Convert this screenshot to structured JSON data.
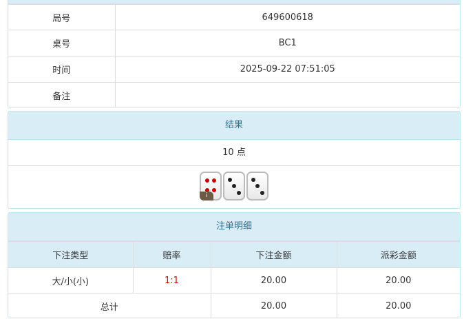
{
  "info": {
    "rows": [
      {
        "label": "局号",
        "value": "649600618"
      },
      {
        "label": "桌号",
        "value": "BC1"
      },
      {
        "label": "时间",
        "value": "2025-09-22 07:51:05"
      },
      {
        "label": "备注",
        "value": ""
      }
    ]
  },
  "result": {
    "title": "结果",
    "points": "10 点",
    "dice": [
      4,
      3,
      3
    ],
    "info_badge": "i"
  },
  "bets": {
    "title": "注单明细",
    "headers": [
      "下注类型",
      "赔率",
      "下注金额",
      "派彩金额"
    ],
    "rows": [
      {
        "type": "大/小(小)",
        "odds": "1:1",
        "amount": "20.00",
        "payout": "20.00"
      }
    ],
    "total": {
      "label": "总计",
      "amount": "20.00",
      "payout": "20.00"
    },
    "odds_color": "#e00000"
  }
}
